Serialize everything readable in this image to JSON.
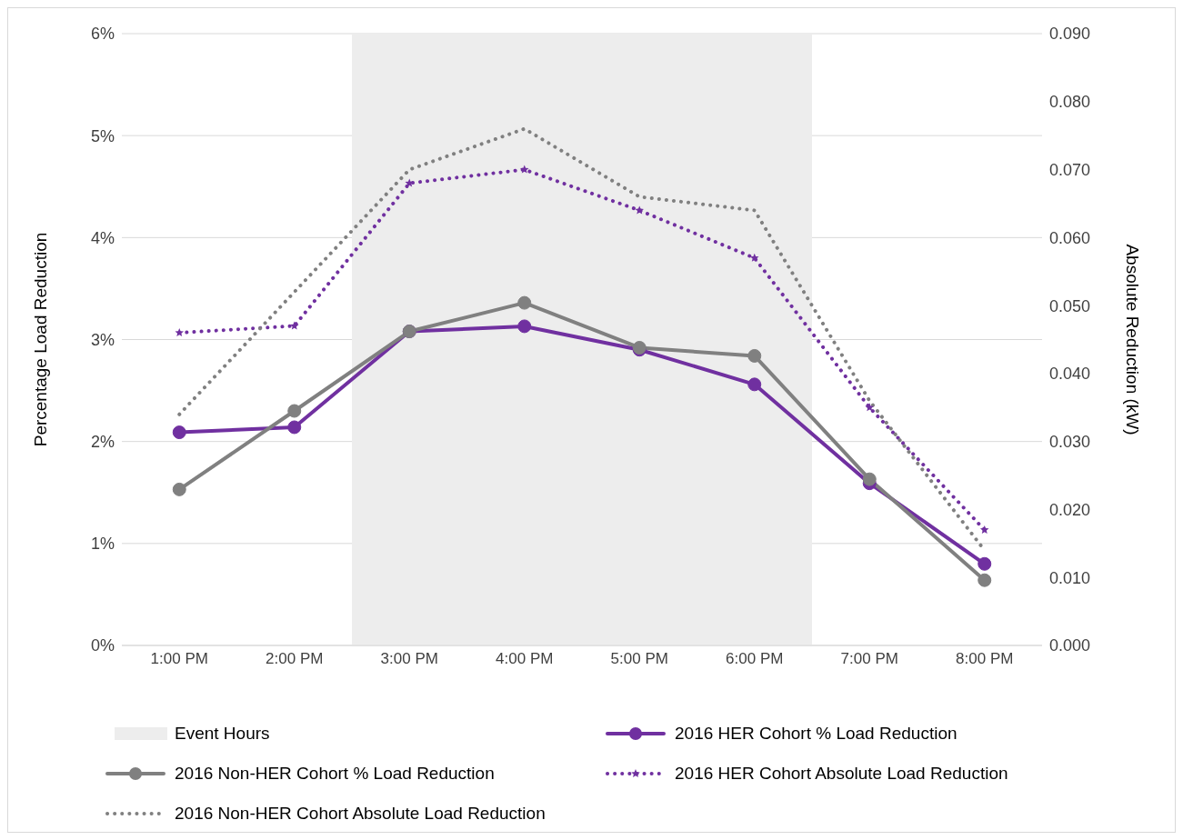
{
  "chart_data": {
    "type": "line",
    "ylabel": "Percentage Load Reduction",
    "y2label": "Absolute Reduction (kW)",
    "categories": [
      "1:00 PM",
      "2:00 PM",
      "3:00 PM",
      "4:00 PM",
      "5:00 PM",
      "6:00 PM",
      "7:00 PM",
      "8:00 PM"
    ],
    "series": [
      {
        "name": "2016 HER Cohort % Load Reduction",
        "color": "#7030a0",
        "values": [
          2.09,
          2.14,
          3.08,
          3.13,
          2.9,
          2.56,
          1.59,
          0.8
        ],
        "marker": "circle",
        "line_style": "solid"
      },
      {
        "name": "2016 Non-HER Cohort % Load Reduction",
        "color": "#808080",
        "values": [
          1.53,
          2.3,
          3.08,
          3.36,
          2.92,
          2.84,
          1.63,
          0.64
        ],
        "marker": "circle",
        "line_style": "solid"
      },
      {
        "name": "2016 HER Cohort Absolute Load Reduction",
        "color": "#7030a0",
        "values": [
          0.046,
          0.047,
          0.068,
          0.07,
          0.064,
          0.057,
          0.035,
          0.017
        ],
        "marker": "star",
        "line_style": "dotted",
        "axis": "y2"
      },
      {
        "name": "2016 Non-HER Cohort Absolute Load Reduction",
        "color": "#808080",
        "values": [
          0.034,
          0.052,
          0.07,
          0.076,
          0.066,
          0.064,
          0.036,
          0.014
        ],
        "marker": "none",
        "line_style": "dotted",
        "axis": "y2"
      }
    ],
    "ylim": [
      0,
      6
    ],
    "yticks": [
      {
        "value": 0,
        "label": "0%"
      },
      {
        "value": 1,
        "label": "1%"
      },
      {
        "value": 2,
        "label": "2%"
      },
      {
        "value": 3,
        "label": "3%"
      },
      {
        "value": 4,
        "label": "4%"
      },
      {
        "value": 5,
        "label": "5%"
      },
      {
        "value": 6,
        "label": "6%"
      }
    ],
    "y2lim": [
      0,
      0.09
    ],
    "y2ticks": [
      {
        "value": 0,
        "label": "0.000"
      },
      {
        "value": 0.01,
        "label": "0.010"
      },
      {
        "value": 0.02,
        "label": "0.020"
      },
      {
        "value": 0.03,
        "label": "0.030"
      },
      {
        "value": 0.04,
        "label": "0.040"
      },
      {
        "value": 0.05,
        "label": "0.050"
      },
      {
        "value": 0.06,
        "label": "0.060"
      },
      {
        "value": 0.07,
        "label": "0.070"
      },
      {
        "value": 0.08,
        "label": "0.080"
      },
      {
        "value": 0.09,
        "label": "0.090"
      }
    ],
    "bands": [
      {
        "axis": "x",
        "from": "3:00 PM",
        "to": "6:00 PM",
        "label": "Event Hours",
        "color": "#ededed"
      }
    ],
    "grid": "y",
    "legend": "bottom"
  }
}
